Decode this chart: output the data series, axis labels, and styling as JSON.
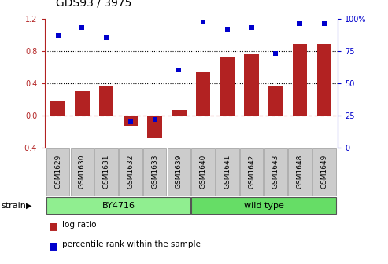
{
  "title": "GDS93 / 3975",
  "samples": [
    "GSM1629",
    "GSM1630",
    "GSM1631",
    "GSM1632",
    "GSM1633",
    "GSM1639",
    "GSM1640",
    "GSM1641",
    "GSM1642",
    "GSM1643",
    "GSM1648",
    "GSM1649"
  ],
  "log_ratio": [
    0.18,
    0.3,
    0.36,
    -0.13,
    -0.27,
    0.07,
    0.53,
    0.72,
    0.76,
    0.37,
    0.88,
    0.88
  ],
  "percentile_rank": [
    87,
    93,
    85,
    20,
    22,
    60,
    97,
    91,
    93,
    73,
    96,
    96
  ],
  "bar_color": "#b22222",
  "dot_color": "#0000cc",
  "group1_label": "BY4716",
  "group1_count": 6,
  "group2_label": "wild type",
  "group2_count": 6,
  "strain_label": "strain",
  "ylim_left": [
    -0.4,
    1.2
  ],
  "ylim_right": [
    0,
    100
  ],
  "yticks_left": [
    -0.4,
    0.0,
    0.4,
    0.8,
    1.2
  ],
  "yticks_right": [
    0,
    25,
    50,
    75,
    100
  ],
  "ytick_labels_right": [
    "0",
    "25",
    "50",
    "75",
    "100%"
  ],
  "hline_y": [
    0.4,
    0.8
  ],
  "zero_line_color": "#cc0000",
  "dotted_line_color": "#000000",
  "plot_bg": "#ffffff",
  "group1_color": "#90ee90",
  "group2_color": "#66dd66",
  "sample_box_color": "#cccccc",
  "legend_log_ratio": "log ratio",
  "legend_percentile": "percentile rank within the sample",
  "title_fontsize": 10,
  "tick_fontsize": 7,
  "label_fontsize": 6.5,
  "strain_fontsize": 8,
  "group_fontsize": 8,
  "legend_fontsize": 7.5
}
